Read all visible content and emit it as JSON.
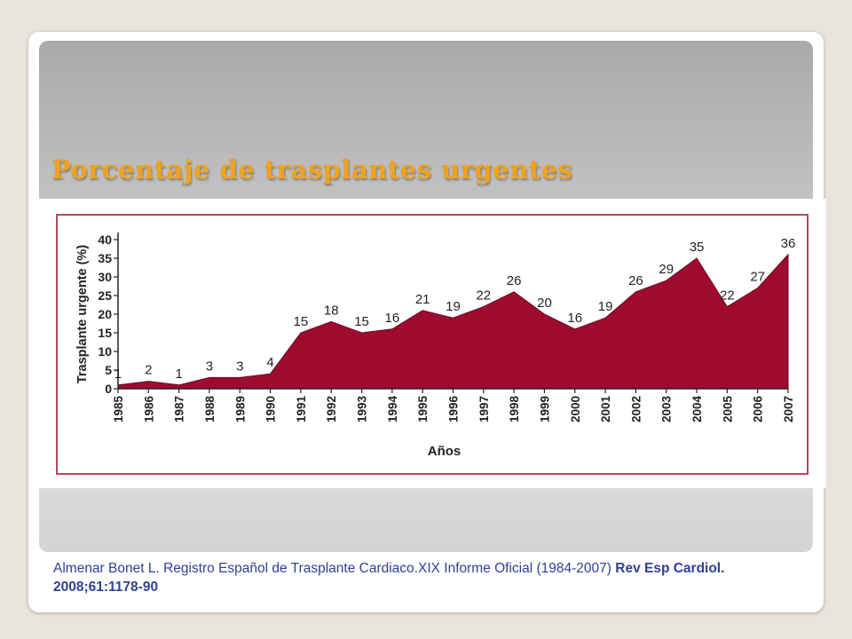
{
  "slide": {
    "title": "Porcentaje de trasplantes urgentes",
    "citation_text": "Almenar Bonet L. Registro Español de Trasplante Cardiaco.XIX Informe Oficial (1984-2007) ",
    "citation_bold": "Rev Esp Cardiol. 2008;61:1178-90"
  },
  "colors": {
    "title": "#f0a21e",
    "area_fill": "#9e0b2e",
    "frame": "#b5485d",
    "citation": "#2f3f96"
  },
  "chart_data": {
    "type": "area",
    "x": [
      "1985",
      "1986",
      "1987",
      "1988",
      "1989",
      "1990",
      "1991",
      "1992",
      "1993",
      "1994",
      "1995",
      "1996",
      "1997",
      "1998",
      "1999",
      "2000",
      "2001",
      "2002",
      "2003",
      "2004",
      "2005",
      "2006",
      "2007"
    ],
    "values": [
      1,
      2,
      1,
      3,
      3,
      4,
      15,
      18,
      15,
      16,
      21,
      19,
      22,
      26,
      20,
      16,
      19,
      26,
      29,
      35,
      22,
      27,
      36
    ],
    "data_labels": [
      "1",
      "2",
      "1",
      "3",
      "3",
      "4",
      "15",
      "18",
      "15",
      "16",
      "21",
      "19",
      "22",
      "26",
      "20",
      "16",
      "19",
      "26",
      "29",
      "35",
      "22",
      "27",
      "36"
    ],
    "xlabel": "Años",
    "ylabel": "Trasplante urgente (%)",
    "ylim": [
      0,
      40
    ],
    "yticks": [
      "0",
      "5",
      "10",
      "15",
      "20",
      "25",
      "30",
      "35",
      "40"
    ],
    "grid": false,
    "legend": "none"
  }
}
